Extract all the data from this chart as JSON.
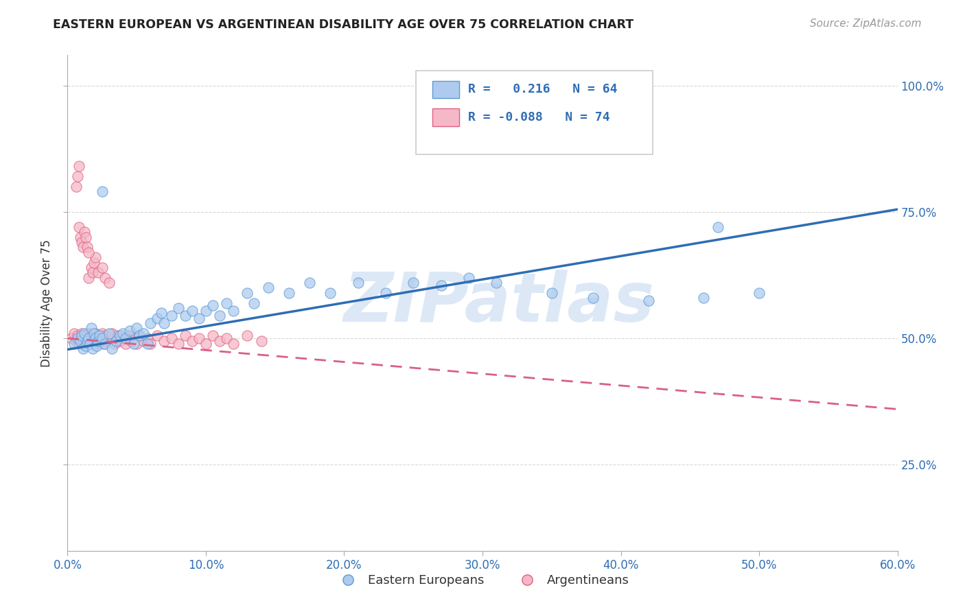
{
  "title": "EASTERN EUROPEAN VS ARGENTINEAN DISABILITY AGE OVER 75 CORRELATION CHART",
  "source": "Source: ZipAtlas.com",
  "ylabel": "Disability Age Over 75",
  "xlim": [
    0.0,
    0.6
  ],
  "ylim": [
    0.08,
    1.06
  ],
  "xtick_labels": [
    "0.0%",
    "10.0%",
    "20.0%",
    "30.0%",
    "40.0%",
    "50.0%",
    "60.0%"
  ],
  "xtick_values": [
    0.0,
    0.1,
    0.2,
    0.3,
    0.4,
    0.5,
    0.6
  ],
  "ytick_labels": [
    "25.0%",
    "50.0%",
    "75.0%",
    "100.0%"
  ],
  "ytick_values": [
    0.25,
    0.5,
    0.75,
    1.0
  ],
  "blue_color": "#aecbef",
  "pink_color": "#f5b8c8",
  "blue_edge_color": "#5b9bd5",
  "pink_edge_color": "#e06080",
  "blue_line_color": "#2e6db4",
  "pink_line_color": "#d95f8a",
  "tick_color": "#2e6db4",
  "legend_label_blue": "Eastern Europeans",
  "legend_label_pink": "Argentineans",
  "watermark": "ZIPatlas",
  "watermark_color": "#c5d9f1",
  "background_color": "#ffffff",
  "grid_color": "#d9d9d9",
  "blue_R": 0.216,
  "blue_N": 64,
  "pink_R": -0.088,
  "pink_N": 74,
  "blue_x": [
    0.005,
    0.007,
    0.009,
    0.01,
    0.011,
    0.012,
    0.013,
    0.014,
    0.015,
    0.016,
    0.017,
    0.018,
    0.019,
    0.02,
    0.021,
    0.022,
    0.023,
    0.025,
    0.027,
    0.03,
    0.032,
    0.035,
    0.038,
    0.04,
    0.042,
    0.045,
    0.048,
    0.05,
    0.052,
    0.055,
    0.058,
    0.06,
    0.065,
    0.068,
    0.07,
    0.075,
    0.08,
    0.085,
    0.09,
    0.095,
    0.1,
    0.105,
    0.11,
    0.115,
    0.12,
    0.13,
    0.135,
    0.145,
    0.16,
    0.175,
    0.19,
    0.21,
    0.23,
    0.25,
    0.27,
    0.29,
    0.31,
    0.35,
    0.38,
    0.42,
    0.46,
    0.5,
    0.025,
    0.47
  ],
  "blue_y": [
    0.49,
    0.5,
    0.495,
    0.505,
    0.48,
    0.51,
    0.485,
    0.495,
    0.5,
    0.49,
    0.52,
    0.48,
    0.51,
    0.5,
    0.485,
    0.495,
    0.505,
    0.5,
    0.49,
    0.51,
    0.48,
    0.495,
    0.505,
    0.51,
    0.5,
    0.515,
    0.49,
    0.52,
    0.505,
    0.51,
    0.49,
    0.53,
    0.54,
    0.55,
    0.53,
    0.545,
    0.56,
    0.545,
    0.555,
    0.54,
    0.555,
    0.565,
    0.545,
    0.57,
    0.555,
    0.59,
    0.57,
    0.6,
    0.59,
    0.61,
    0.59,
    0.61,
    0.59,
    0.61,
    0.605,
    0.62,
    0.61,
    0.59,
    0.58,
    0.575,
    0.58,
    0.59,
    0.79,
    0.72
  ],
  "pink_x": [
    0.003,
    0.005,
    0.006,
    0.007,
    0.008,
    0.009,
    0.01,
    0.011,
    0.012,
    0.013,
    0.014,
    0.015,
    0.016,
    0.017,
    0.018,
    0.019,
    0.02,
    0.021,
    0.022,
    0.023,
    0.024,
    0.025,
    0.026,
    0.027,
    0.028,
    0.03,
    0.032,
    0.034,
    0.036,
    0.038,
    0.04,
    0.042,
    0.044,
    0.046,
    0.048,
    0.05,
    0.052,
    0.055,
    0.058,
    0.06,
    0.065,
    0.07,
    0.075,
    0.08,
    0.085,
    0.09,
    0.095,
    0.1,
    0.105,
    0.11,
    0.115,
    0.12,
    0.13,
    0.14,
    0.015,
    0.017,
    0.018,
    0.019,
    0.02,
    0.022,
    0.025,
    0.027,
    0.03,
    0.008,
    0.009,
    0.01,
    0.011,
    0.012,
    0.013,
    0.014,
    0.015,
    0.006,
    0.007,
    0.008
  ],
  "pink_y": [
    0.5,
    0.51,
    0.495,
    0.505,
    0.49,
    0.5,
    0.51,
    0.49,
    0.505,
    0.495,
    0.5,
    0.51,
    0.49,
    0.505,
    0.495,
    0.5,
    0.51,
    0.49,
    0.505,
    0.495,
    0.5,
    0.51,
    0.49,
    0.505,
    0.495,
    0.5,
    0.51,
    0.49,
    0.505,
    0.495,
    0.5,
    0.49,
    0.505,
    0.495,
    0.5,
    0.49,
    0.505,
    0.495,
    0.5,
    0.49,
    0.505,
    0.495,
    0.5,
    0.49,
    0.505,
    0.495,
    0.5,
    0.49,
    0.505,
    0.495,
    0.5,
    0.49,
    0.505,
    0.495,
    0.62,
    0.64,
    0.63,
    0.65,
    0.66,
    0.63,
    0.64,
    0.62,
    0.61,
    0.72,
    0.7,
    0.69,
    0.68,
    0.71,
    0.7,
    0.68,
    0.67,
    0.8,
    0.82,
    0.84
  ],
  "blue_trend_x": [
    0.0,
    0.6
  ],
  "blue_trend_y": [
    0.478,
    0.755
  ],
  "pink_trend_x": [
    0.0,
    0.6
  ],
  "pink_trend_y": [
    0.5,
    0.36
  ]
}
